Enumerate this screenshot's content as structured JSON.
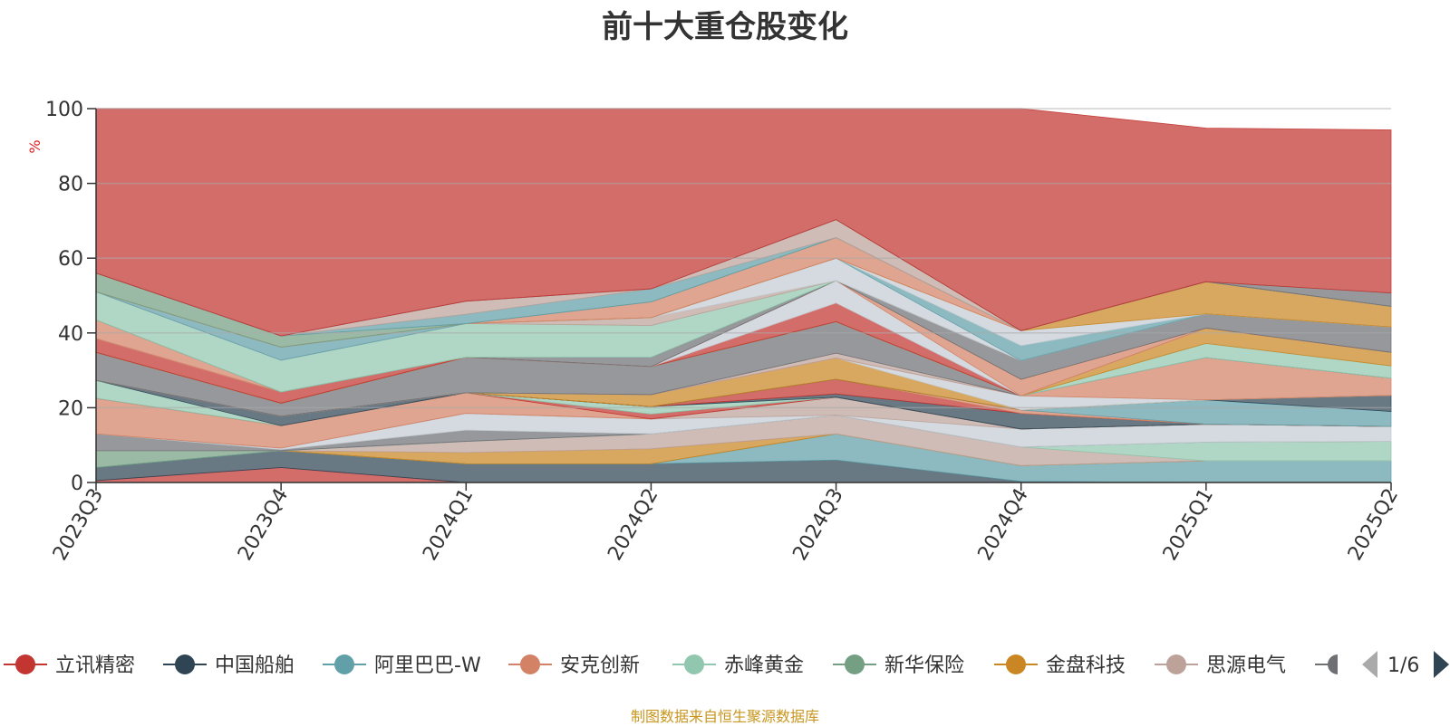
{
  "chart_data": {
    "type": "area",
    "title": "前十大重仓股变化",
    "ylabel": "%",
    "ylim": [
      0,
      100
    ],
    "yticks": [
      0,
      20,
      40,
      60,
      80,
      100
    ],
    "categories": [
      "2023Q3",
      "2023Q4",
      "2024Q1",
      "2024Q2",
      "2024Q3",
      "2024Q4",
      "2025Q1",
      "2025Q2"
    ],
    "legend": {
      "position": "bottom",
      "page": "1/6",
      "items": [
        "立讯精密",
        "中国船舶",
        "阿里巴巴-W",
        "安克创新",
        "赤峰黄金",
        "新华保险",
        "金盘科技",
        "思源电气"
      ],
      "colors": [
        "#c23531",
        "#2f4554",
        "#61a0a8",
        "#d48265",
        "#91c7ae",
        "#749f83",
        "#ca8622",
        "#bda29a",
        "#6e7074"
      ]
    },
    "grid": true,
    "total_top": [
      100,
      100,
      100,
      100,
      100,
      100,
      94.8,
      94.3
    ],
    "layers": [
      {
        "color": "#c23531",
        "values": [
          0.5,
          4,
          0,
          0,
          0,
          0,
          0,
          0
        ]
      },
      {
        "color": "#2f4554",
        "values": [
          3.5,
          4.5,
          5,
          5,
          6,
          0.3,
          0,
          0
        ]
      },
      {
        "color": "#61a0a8",
        "values": [
          0,
          0,
          0,
          0,
          7,
          4.2,
          5.8,
          5.8
        ]
      },
      {
        "color": "#749f83",
        "values": [
          4.5,
          0,
          0,
          0,
          0,
          0,
          0,
          0
        ]
      },
      {
        "color": "#ca8622",
        "values": [
          0,
          0,
          3,
          4,
          0,
          0,
          0,
          0
        ]
      },
      {
        "color": "#bda29a",
        "values": [
          0,
          0,
          3,
          4,
          5,
          5,
          0,
          0
        ]
      },
      {
        "color": "#91c7ae",
        "values": [
          0,
          0,
          0,
          0,
          0,
          0,
          5,
          5.2
        ]
      },
      {
        "color": "#6e7074",
        "values": [
          4.5,
          0.3,
          3,
          0,
          0,
          0,
          0,
          0
        ]
      },
      {
        "color": "#c4ccd3",
        "values": [
          0,
          0.4,
          4.5,
          4,
          0,
          4.8,
          4.8,
          4
        ]
      },
      {
        "color": "#bda29a",
        "values": [
          0,
          0,
          0,
          0,
          4.8,
          0,
          0,
          0
        ]
      },
      {
        "color": "#d48265",
        "values": [
          9.5,
          6,
          5.5,
          0,
          0,
          0,
          0,
          0
        ]
      },
      {
        "color": "#c23531",
        "values": [
          0,
          0,
          0,
          1.3,
          0,
          0,
          0,
          0
        ]
      },
      {
        "color": "#91c7ae",
        "values": [
          4.8,
          0,
          0,
          2,
          0,
          0,
          0,
          0
        ]
      },
      {
        "color": "#2f4554",
        "values": [
          0,
          2.5,
          0,
          0,
          0.9,
          4.2,
          0,
          0
        ]
      },
      {
        "color": "#c23531",
        "values": [
          0,
          0,
          0,
          0,
          3.9,
          0,
          0,
          0
        ]
      },
      {
        "color": "#d48265",
        "values": [
          0,
          0,
          0,
          0,
          0,
          0.9,
          0,
          0
        ]
      },
      {
        "color": "#61a0a8",
        "values": [
          0,
          0,
          0,
          0,
          0,
          0,
          6.5,
          4
        ]
      },
      {
        "color": "#2f4554",
        "values": [
          0,
          0,
          0,
          0,
          0,
          0,
          0,
          4.3
        ]
      },
      {
        "color": "#ca8622",
        "values": [
          0,
          0,
          0,
          3.2,
          5.7,
          0,
          0,
          0
        ]
      },
      {
        "color": "#c4ccd3",
        "values": [
          0,
          0,
          0,
          0,
          0,
          3.8,
          0,
          0
        ]
      },
      {
        "color": "#d48265",
        "values": [
          0,
          0,
          0,
          0,
          0,
          0,
          11.3,
          4.6
        ]
      },
      {
        "color": "#bda29a",
        "values": [
          0,
          0,
          0,
          0,
          1.3,
          0,
          0,
          0
        ]
      },
      {
        "color": "#6e7074",
        "values": [
          7.5,
          3.5,
          9.5,
          7.5,
          8.4,
          0,
          0,
          0
        ]
      },
      {
        "color": "#91c7ae",
        "values": [
          0,
          0,
          0,
          0,
          0,
          0,
          3.8,
          3.3
        ]
      },
      {
        "color": "#ca8622",
        "values": [
          0,
          0,
          0,
          0,
          0,
          0,
          4.1,
          3.6
        ]
      },
      {
        "color": "#c23531",
        "values": [
          3.7,
          3,
          0,
          0,
          5,
          0,
          0,
          0
        ]
      },
      {
        "color": "#c4ccd3",
        "values": [
          0,
          0,
          0,
          0,
          6,
          0,
          0,
          0
        ]
      },
      {
        "color": "#d48265",
        "values": [
          5,
          0,
          0,
          0,
          0,
          4.4,
          0,
          0
        ]
      },
      {
        "color": "#6e7074",
        "values": [
          0,
          0,
          0,
          2.5,
          0,
          5,
          3.8,
          6.8
        ]
      },
      {
        "color": "#91c7ae",
        "values": [
          7.5,
          8.5,
          9,
          8.5,
          0,
          0,
          0,
          0
        ]
      },
      {
        "color": "#bda29a",
        "values": [
          0,
          0,
          0,
          2.1,
          0,
          0,
          0,
          0
        ]
      },
      {
        "color": "#c4ccd3",
        "values": [
          0,
          0,
          0,
          0,
          6,
          0,
          0,
          0
        ]
      },
      {
        "color": "#61a0a8",
        "values": [
          0,
          3.5,
          0,
          0,
          0,
          4,
          0,
          0
        ]
      },
      {
        "color": "#c4ccd3",
        "values": [
          0,
          0,
          0,
          0,
          0,
          4,
          0,
          0
        ]
      },
      {
        "color": "#ca8622",
        "values": [
          0,
          0,
          0,
          0,
          0,
          0,
          8.6,
          5.5
        ]
      },
      {
        "color": "#d48265",
        "values": [
          0,
          0,
          0,
          4.2,
          5.5,
          0,
          0,
          0
        ]
      },
      {
        "color": "#749f83",
        "values": [
          5,
          3,
          0,
          0,
          0,
          0,
          0,
          0
        ]
      },
      {
        "color": "#61a0a8",
        "values": [
          0,
          0,
          2.5,
          3.5,
          0,
          0,
          0,
          0
        ]
      },
      {
        "color": "#bda29a",
        "values": [
          0,
          0,
          3.5,
          0,
          4.8,
          0,
          0,
          0
        ]
      },
      {
        "color": "#6e7074",
        "values": [
          0,
          0,
          0,
          0,
          0,
          0,
          0,
          3.6
        ]
      }
    ]
  },
  "legend_labels": [
    "立讯精密",
    "中国船舶",
    "阿里巴巴-W",
    "安克创新",
    "赤峰黄金",
    "新华保险",
    "金盘科技",
    "思源电气"
  ],
  "legend_page": "1/6",
  "source_text": "制图数据来自恒生聚源数据库"
}
